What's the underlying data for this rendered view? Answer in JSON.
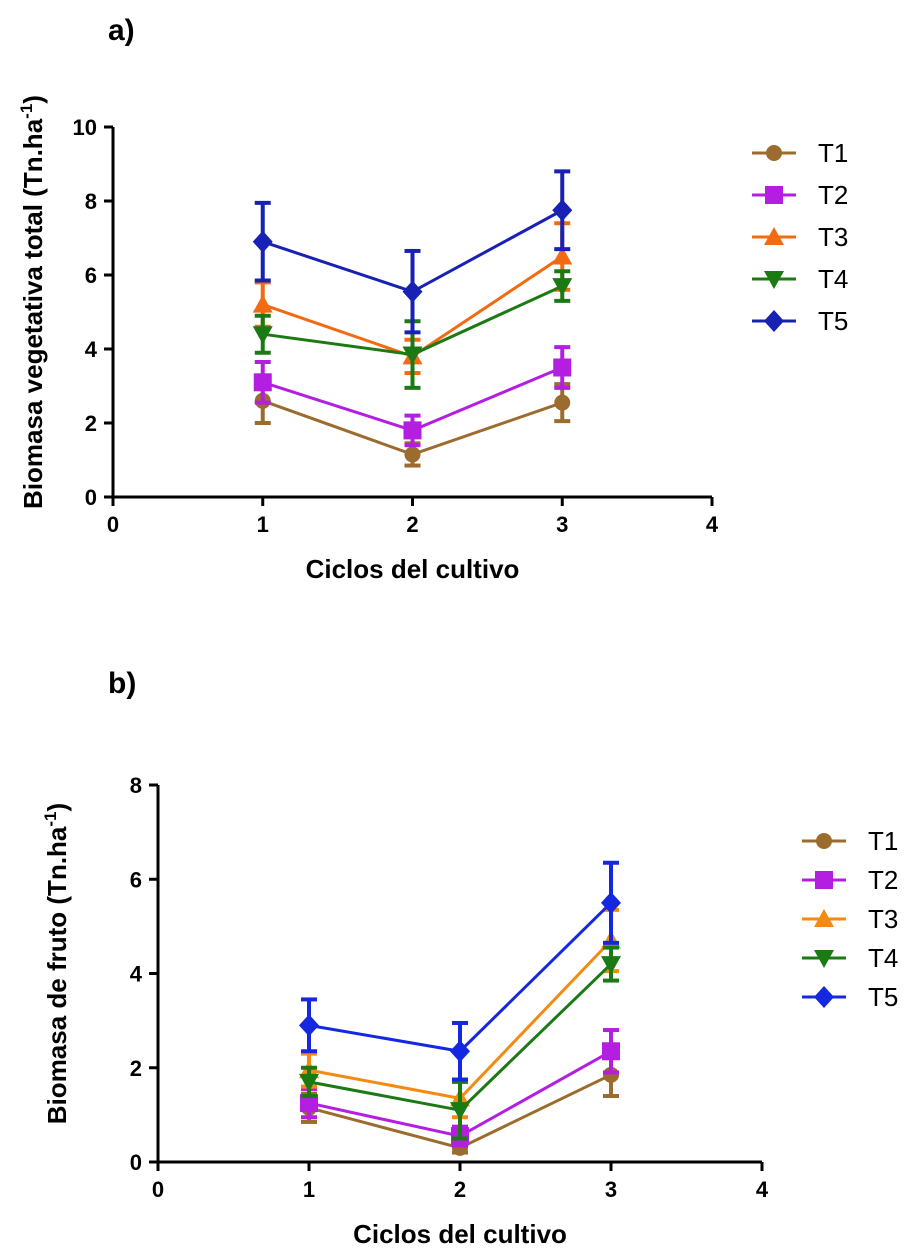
{
  "chart_data": [
    {
      "panel_label": "a)",
      "type": "line",
      "xlabel": "Ciclos del cultivo",
      "ylabel": "Biomasa vegetativa total (Tn.ha",
      "ylabel_sup": "-1",
      "ylabel_close": ")",
      "xlim": [
        0,
        4
      ],
      "ylim": [
        0,
        10
      ],
      "xticks": [
        "0",
        "1",
        "2",
        "3",
        "4"
      ],
      "yticks": [
        "0",
        "2",
        "4",
        "6",
        "8",
        "10"
      ],
      "grid": false,
      "legend_position": "right",
      "x": [
        1,
        2,
        3
      ],
      "series": [
        {
          "name": "T1",
          "marker": "circle",
          "color": "#9c6b2e",
          "values": [
            2.6,
            1.15,
            2.55
          ],
          "err": [
            0.6,
            0.3,
            0.5
          ]
        },
        {
          "name": "T2",
          "marker": "square",
          "color": "#b31ee0",
          "values": [
            3.1,
            1.8,
            3.5
          ],
          "err": [
            0.55,
            0.4,
            0.55
          ]
        },
        {
          "name": "T3",
          "marker": "triangle-up",
          "color": "#f26b12",
          "values": [
            5.2,
            3.8,
            6.5
          ],
          "err": [
            0.6,
            0.45,
            0.9
          ]
        },
        {
          "name": "T4",
          "marker": "triangle-down",
          "color": "#1c7a14",
          "values": [
            4.4,
            3.85,
            5.7
          ],
          "err": [
            0.5,
            0.9,
            0.4
          ]
        },
        {
          "name": "T5",
          "marker": "diamond",
          "color": "#1722b5",
          "values": [
            6.9,
            5.55,
            7.75
          ],
          "err": [
            1.05,
            1.1,
            1.05
          ]
        }
      ]
    },
    {
      "panel_label": "b)",
      "type": "line",
      "xlabel": "Ciclos del cultivo",
      "ylabel": "Biomasa de fruto (Tn.ha",
      "ylabel_sup": "-1",
      "ylabel_close": ")",
      "xlim": [
        0,
        4
      ],
      "ylim": [
        0,
        8
      ],
      "xticks": [
        "0",
        "1",
        "2",
        "3",
        "4"
      ],
      "yticks": [
        "0",
        "2",
        "4",
        "6",
        "8"
      ],
      "grid": false,
      "legend_position": "right",
      "x": [
        1,
        2,
        3
      ],
      "series": [
        {
          "name": "T1",
          "marker": "circle",
          "color": "#9c6b2e",
          "values": [
            1.15,
            0.3,
            1.85
          ],
          "err": [
            0.3,
            0.1,
            0.45
          ]
        },
        {
          "name": "T2",
          "marker": "square",
          "color": "#b31ee0",
          "values": [
            1.25,
            0.55,
            2.35
          ],
          "err": [
            0.3,
            0.2,
            0.45
          ]
        },
        {
          "name": "T3",
          "marker": "triangle-up",
          "color": "#f58a12",
          "values": [
            1.95,
            1.35,
            4.7
          ],
          "err": [
            0.35,
            0.4,
            0.65
          ]
        },
        {
          "name": "T4",
          "marker": "triangle-down",
          "color": "#1c7a14",
          "values": [
            1.7,
            1.1,
            4.2
          ],
          "err": [
            0.3,
            0.6,
            0.35
          ]
        },
        {
          "name": "T5",
          "marker": "diamond",
          "color": "#1428e0",
          "values": [
            2.9,
            2.35,
            5.5
          ],
          "err": [
            0.55,
            0.6,
            0.85
          ]
        }
      ]
    }
  ]
}
